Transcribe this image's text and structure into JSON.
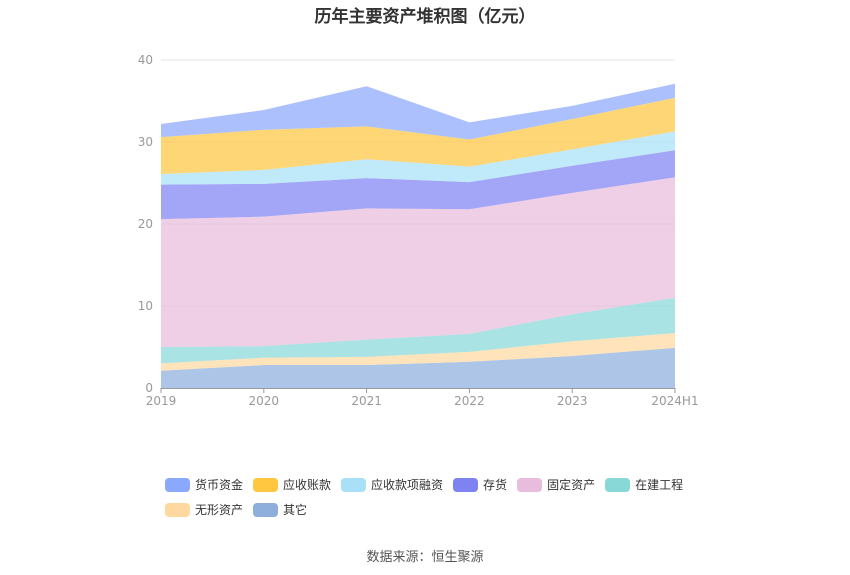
{
  "chart_data": {
    "type": "area",
    "stacked": true,
    "title": "历年主要资产堆积图（亿元）",
    "categories": [
      "2019",
      "2020",
      "2021",
      "2022",
      "2023",
      "2024H1"
    ],
    "ylim": [
      0,
      40
    ],
    "yticks": [
      0,
      10,
      20,
      30,
      40
    ],
    "grid": true,
    "legend_position": "bottom",
    "series": [
      {
        "name": "其它",
        "color": "#8eaedc",
        "values": [
          2.1,
          2.8,
          2.8,
          3.2,
          3.9,
          4.9
        ]
      },
      {
        "name": "无形资产",
        "color": "#ffd8a0",
        "values": [
          0.9,
          0.9,
          1.0,
          1.2,
          1.8,
          1.8
        ]
      },
      {
        "name": "在建工程",
        "color": "#88d8d8",
        "values": [
          2.0,
          1.4,
          2.1,
          2.2,
          3.3,
          4.3
        ]
      },
      {
        "name": "固定资产",
        "color": "#e8bcdc",
        "values": [
          15.6,
          15.8,
          16.0,
          15.2,
          14.8,
          14.7
        ]
      },
      {
        "name": "存货",
        "color": "#7f83f2",
        "values": [
          4.2,
          4.0,
          3.7,
          3.3,
          3.3,
          3.3
        ]
      },
      {
        "name": "应收款项融资",
        "color": "#a8e0f8",
        "values": [
          1.3,
          1.7,
          2.3,
          1.9,
          2.0,
          2.3
        ]
      },
      {
        "name": "应收账款",
        "color": "#ffc640",
        "values": [
          4.5,
          4.9,
          4.0,
          3.3,
          3.7,
          4.1
        ]
      },
      {
        "name": "货币资金",
        "color": "#8aa8fc",
        "values": [
          1.6,
          2.4,
          4.9,
          2.1,
          1.6,
          1.7
        ]
      }
    ]
  },
  "legend": {
    "items": [
      {
        "label": "货币资金",
        "color": "#8aa8fc"
      },
      {
        "label": "应收账款",
        "color": "#ffc640"
      },
      {
        "label": "应收款项融资",
        "color": "#a8e0f8"
      },
      {
        "label": "存货",
        "color": "#7f83f2"
      },
      {
        "label": "固定资产",
        "color": "#e8bcdc"
      },
      {
        "label": "在建工程",
        "color": "#88d8d8"
      },
      {
        "label": "无形资产",
        "color": "#ffd8a0"
      },
      {
        "label": "其它",
        "color": "#8eaedc"
      }
    ]
  },
  "source": "数据来源：恒生聚源"
}
